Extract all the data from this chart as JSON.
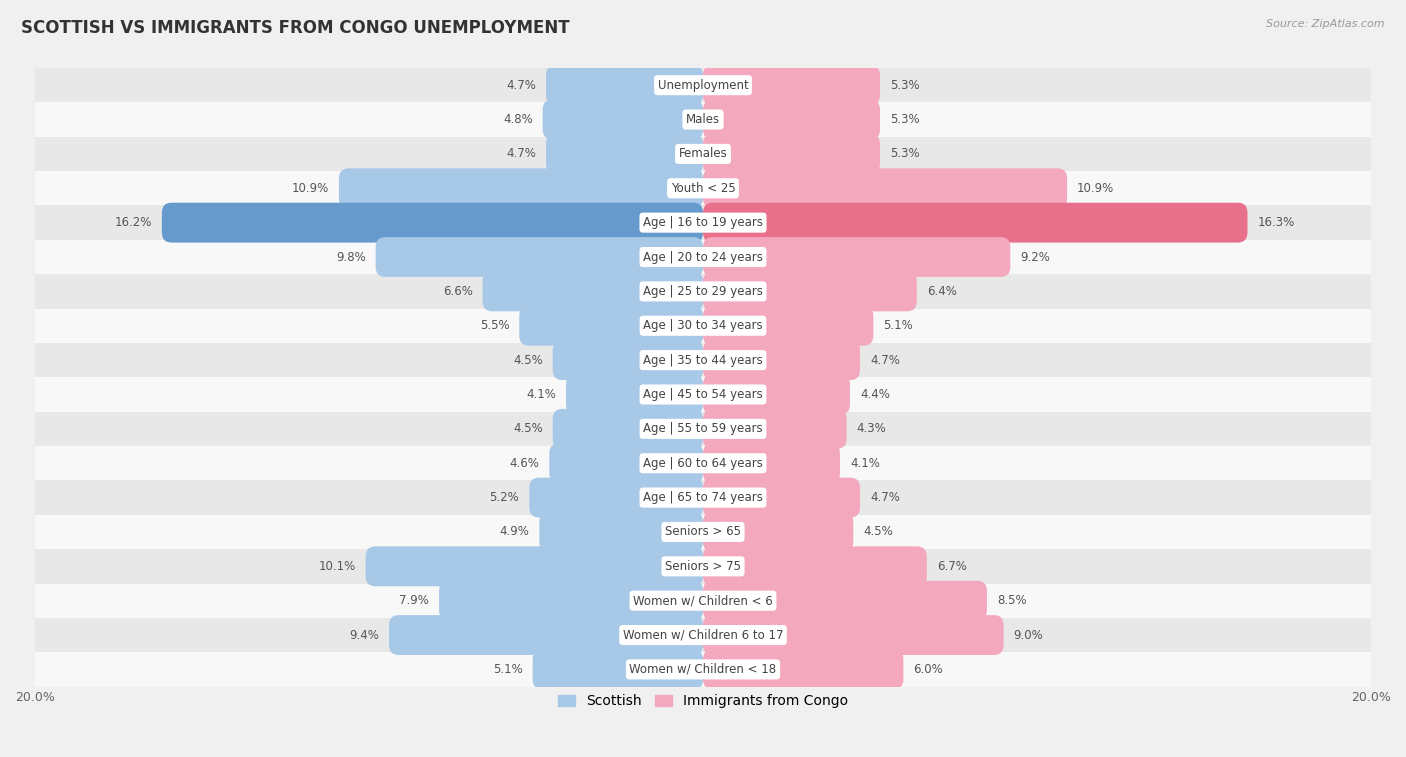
{
  "title": "SCOTTISH VS IMMIGRANTS FROM CONGO UNEMPLOYMENT",
  "source": "Source: ZipAtlas.com",
  "categories": [
    "Unemployment",
    "Males",
    "Females",
    "Youth < 25",
    "Age | 16 to 19 years",
    "Age | 20 to 24 years",
    "Age | 25 to 29 years",
    "Age | 30 to 34 years",
    "Age | 35 to 44 years",
    "Age | 45 to 54 years",
    "Age | 55 to 59 years",
    "Age | 60 to 64 years",
    "Age | 65 to 74 years",
    "Seniors > 65",
    "Seniors > 75",
    "Women w/ Children < 6",
    "Women w/ Children 6 to 17",
    "Women w/ Children < 18"
  ],
  "scottish": [
    4.7,
    4.8,
    4.7,
    10.9,
    16.2,
    9.8,
    6.6,
    5.5,
    4.5,
    4.1,
    4.5,
    4.6,
    5.2,
    4.9,
    10.1,
    7.9,
    9.4,
    5.1
  ],
  "congo": [
    5.3,
    5.3,
    5.3,
    10.9,
    16.3,
    9.2,
    6.4,
    5.1,
    4.7,
    4.4,
    4.3,
    4.1,
    4.7,
    4.5,
    6.7,
    8.5,
    9.0,
    6.0
  ],
  "scottish_color": "#a8c8e8",
  "congo_color": "#f4a8be",
  "scottish_highlight_color": "#6699cc",
  "congo_highlight_color": "#e8708a",
  "axis_max": 20.0,
  "bar_height": 0.58,
  "bg_color": "#f0f0f0",
  "row_odd_color": "#e8e8e8",
  "row_even_color": "#f8f8f8",
  "label_fontsize": 8.5,
  "title_fontsize": 12,
  "legend_fontsize": 10,
  "value_color": "#555555"
}
